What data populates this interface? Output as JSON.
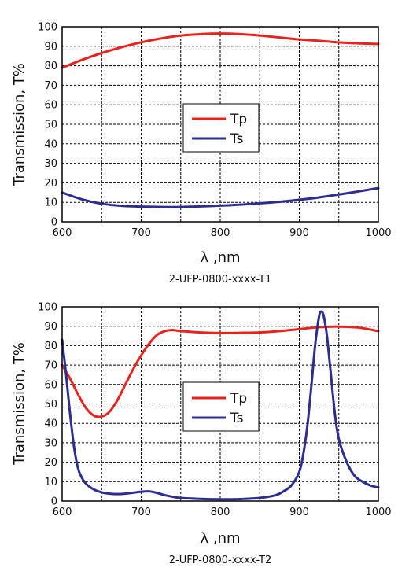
{
  "chart_data": [
    {
      "type": "line",
      "caption": "2-UFP-0800-xxxx-T1",
      "xlabel": "λ ,nm",
      "ylabel": "Transmission, T%",
      "xlim": [
        600,
        1000
      ],
      "ylim": [
        0,
        100
      ],
      "xticks": [
        600,
        700,
        800,
        900,
        1000
      ],
      "yticks": [
        0,
        10,
        20,
        30,
        40,
        50,
        60,
        70,
        80,
        90,
        100
      ],
      "grid": true,
      "legend_position": "center",
      "series": [
        {
          "name": "Tp",
          "color": "#e8231e",
          "x": [
            600,
            625,
            650,
            675,
            700,
            725,
            750,
            775,
            800,
            825,
            850,
            875,
            900,
            925,
            950,
            975,
            1000
          ],
          "y": [
            79,
            83,
            86.5,
            89.5,
            92,
            94,
            95.5,
            96.2,
            96.5,
            96.2,
            95.5,
            94.5,
            93.5,
            92.8,
            92,
            91.5,
            91.2
          ]
        },
        {
          "name": "Ts",
          "color": "#2b2e8f",
          "x": [
            600,
            625,
            650,
            675,
            700,
            725,
            750,
            775,
            800,
            825,
            850,
            875,
            900,
            925,
            950,
            975,
            1000
          ],
          "y": [
            15,
            11.5,
            9.3,
            8.2,
            7.8,
            7.6,
            7.6,
            7.9,
            8.3,
            8.8,
            9.5,
            10.3,
            11.3,
            12.5,
            14,
            15.6,
            17.3
          ]
        }
      ]
    },
    {
      "type": "line",
      "caption": "2-UFP-0800-xxxx-T2",
      "xlabel": "λ ,nm",
      "ylabel": "Transmission, T%",
      "xlim": [
        600,
        1000
      ],
      "ylim": [
        0,
        100
      ],
      "xticks": [
        600,
        700,
        800,
        900,
        1000
      ],
      "yticks": [
        0,
        10,
        20,
        30,
        40,
        50,
        60,
        70,
        80,
        90,
        100
      ],
      "grid": true,
      "legend_position": "center",
      "series": [
        {
          "name": "Tp",
          "color": "#e8231e",
          "x": [
            600,
            610,
            620,
            630,
            640,
            650,
            660,
            670,
            680,
            690,
            700,
            710,
            720,
            730,
            740,
            750,
            775,
            800,
            825,
            850,
            875,
            900,
            925,
            950,
            975,
            1000
          ],
          "y": [
            70,
            63,
            55,
            48,
            44,
            43.5,
            46,
            52,
            60,
            68,
            75,
            81,
            85.5,
            87.5,
            88,
            87.5,
            86.8,
            86.5,
            86.6,
            86.8,
            87.5,
            88.5,
            89.5,
            89.8,
            89.3,
            87.5
          ]
        },
        {
          "name": "Ts",
          "color": "#2b2e8f",
          "x": [
            600,
            605,
            610,
            615,
            620,
            625,
            630,
            640,
            650,
            660,
            670,
            680,
            690,
            700,
            710,
            720,
            730,
            740,
            750,
            775,
            800,
            825,
            850,
            870,
            880,
            890,
            900,
            905,
            910,
            915,
            920,
            925,
            928,
            931,
            935,
            940,
            945,
            950,
            960,
            970,
            980,
            990,
            1000
          ],
          "y": [
            83,
            65,
            45,
            28,
            17,
            12,
            9,
            6,
            4.5,
            3.8,
            3.6,
            3.8,
            4.3,
            4.8,
            5,
            4.2,
            3,
            2.2,
            1.6,
            1.1,
            0.9,
            1,
            1.6,
            3,
            5,
            8,
            15,
            24,
            38,
            58,
            80,
            95,
            97.5,
            95,
            85,
            65,
            45,
            32,
            20,
            13,
            10,
            8,
            7
          ]
        }
      ]
    }
  ]
}
